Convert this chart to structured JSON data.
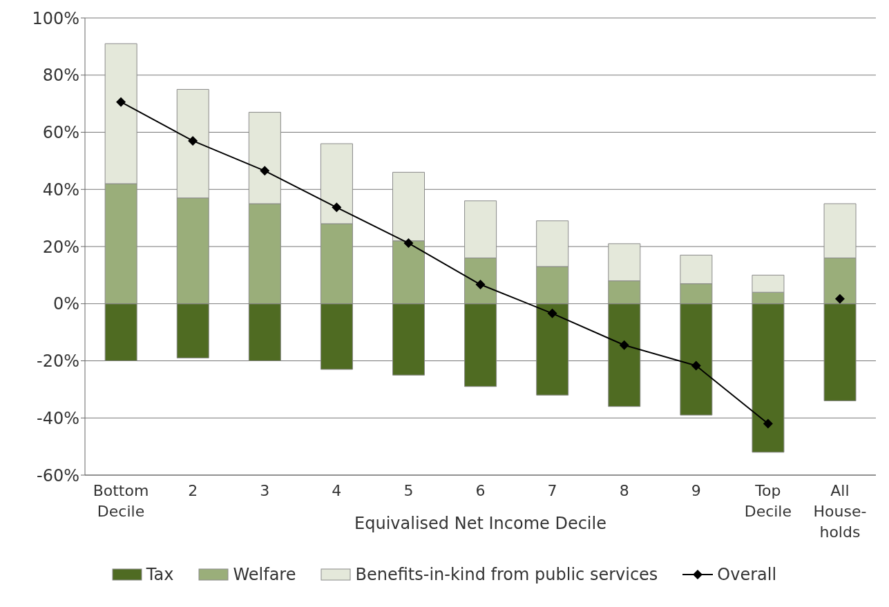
{
  "chart_data": {
    "type": "bar",
    "stacked": true,
    "xlabel": "Equivalised Net Income Decile",
    "categories": [
      "Bottom\nDecile",
      "2",
      "3",
      "4",
      "5",
      "6",
      "7",
      "8",
      "9",
      "Top\nDecile",
      "All\nHouse-\nholds"
    ],
    "series": [
      {
        "name": "Tax",
        "color": "#4f6b22",
        "values": [
          -20,
          -19,
          -20,
          -23,
          -25,
          -29,
          -32,
          -36,
          -39,
          -52,
          -34
        ]
      },
      {
        "name": "Welfare",
        "color": "#9aae7a",
        "values": [
          42,
          37,
          35,
          28,
          22,
          16,
          13,
          8,
          7,
          4,
          16
        ]
      },
      {
        "name": "Benefits-in-kind from public services",
        "color": "#e4e8da",
        "values": [
          49,
          38,
          32,
          28,
          24,
          20,
          16,
          13,
          10,
          6,
          19
        ]
      },
      {
        "name": "Overall",
        "type": "line",
        "color": "#000000",
        "values": [
          70.6,
          57,
          46.5,
          33.7,
          21.2,
          6.7,
          -3.4,
          -14.5,
          -21.7,
          -42,
          null
        ]
      },
      {
        "type": "scatter",
        "color": "#000000",
        "values": [
          null,
          null,
          null,
          null,
          null,
          null,
          null,
          null,
          null,
          null,
          1.7
        ]
      }
    ],
    "ylim": [
      -60,
      100
    ],
    "yticks": [
      {
        "value": -60,
        "label": "-60%"
      },
      {
        "value": -40,
        "label": "-40%"
      },
      {
        "value": -20,
        "label": "-20%"
      },
      {
        "value": 0,
        "label": "0%"
      },
      {
        "value": 20,
        "label": "20%"
      },
      {
        "value": 40,
        "label": "40%"
      },
      {
        "value": 60,
        "label": "60%"
      },
      {
        "value": 80,
        "label": "80%"
      },
      {
        "value": 100,
        "label": "100%"
      }
    ],
    "grid": "y",
    "legend": "bottom",
    "marker": "diamond",
    "line_style": "solid"
  }
}
